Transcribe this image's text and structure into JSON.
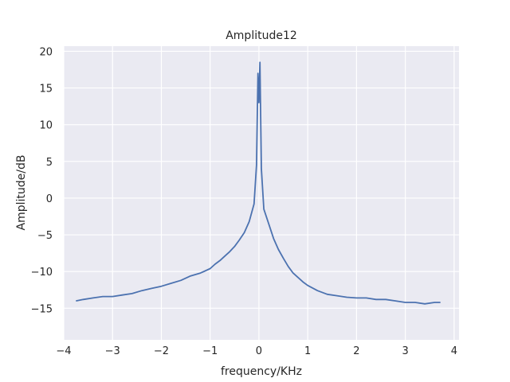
{
  "chart_data": {
    "type": "line",
    "title": "Amplitude12",
    "xlabel": "frequency/KHz",
    "ylabel": "Amplitude/dB",
    "xlim": [
      -4.0,
      4.1
    ],
    "ylim": [
      -19.3,
      20.7
    ],
    "xticks": [
      -4,
      -3,
      -2,
      -1,
      0,
      1,
      2,
      3,
      4
    ],
    "xtick_labels": [
      "−4",
      "−3",
      "−2",
      "−1",
      "0",
      "1",
      "2",
      "3",
      "4"
    ],
    "yticks": [
      -15,
      -10,
      -5,
      0,
      5,
      10,
      15,
      20
    ],
    "ytick_labels": [
      "−15",
      "−10",
      "−5",
      "0",
      "5",
      "10",
      "15",
      "20"
    ],
    "grid": true,
    "background": "#eaeaf2",
    "grid_color": "#ffffff",
    "line_color": "#4c72b0",
    "series": [
      {
        "x": [
          -3.75,
          -3.6,
          -3.4,
          -3.2,
          -3.0,
          -2.8,
          -2.6,
          -2.4,
          -2.2,
          -2.0,
          -1.8,
          -1.6,
          -1.4,
          -1.2,
          -1.0,
          -0.9,
          -0.8,
          -0.7,
          -0.6,
          -0.5,
          -0.4,
          -0.3,
          -0.2,
          -0.1,
          -0.05,
          -0.02,
          0.0,
          0.02,
          0.05,
          0.1,
          0.2,
          0.3,
          0.4,
          0.5,
          0.6,
          0.7,
          0.8,
          0.9,
          1.0,
          1.2,
          1.4,
          1.6,
          1.8,
          2.0,
          2.2,
          2.4,
          2.6,
          2.8,
          3.0,
          3.2,
          3.4,
          3.6,
          3.72
        ],
        "y": [
          -14.0,
          -13.8,
          -13.6,
          -13.4,
          -13.4,
          -13.2,
          -13.0,
          -12.6,
          -12.3,
          -12.0,
          -11.6,
          -11.2,
          -10.6,
          -10.2,
          -9.6,
          -9.0,
          -8.5,
          -7.9,
          -7.3,
          -6.6,
          -5.7,
          -4.7,
          -3.2,
          -0.8,
          4.5,
          17.0,
          13.0,
          18.5,
          4.0,
          -1.5,
          -3.5,
          -5.5,
          -7.0,
          -8.2,
          -9.3,
          -10.2,
          -10.8,
          -11.4,
          -11.9,
          -12.6,
          -13.1,
          -13.3,
          -13.5,
          -13.6,
          -13.6,
          -13.8,
          -13.8,
          -14.0,
          -14.2,
          -14.2,
          -14.4,
          -14.2,
          -14.2
        ]
      }
    ]
  }
}
